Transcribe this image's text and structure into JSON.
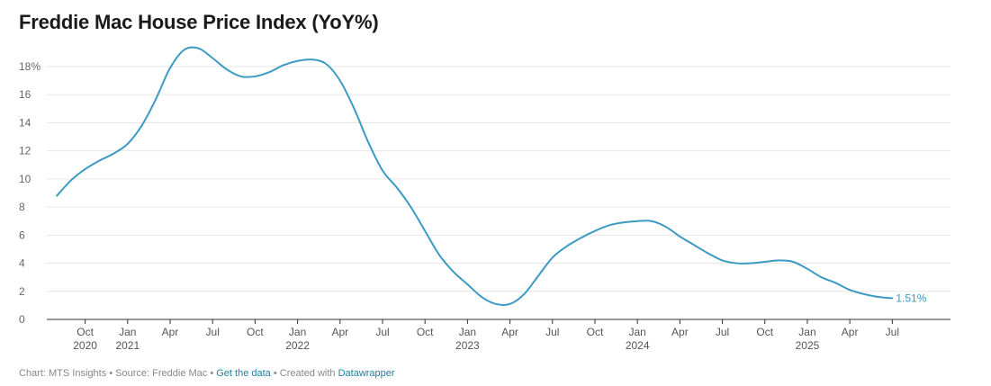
{
  "title": "Freddie Mac House Price Index (YoY%)",
  "footer": {
    "chart_by": "Chart: MTS Insights",
    "sep1": " • ",
    "source": "Source: Freddie Mac",
    "sep2": " • ",
    "get_data": "Get the data",
    "sep3": " • ",
    "created_with": "Created with ",
    "datawrapper": "Datawrapper"
  },
  "colors": {
    "line": "#3c9ac3",
    "grid": "#e6e6e6",
    "axis": "#333333",
    "end_label": "#3c9ac3"
  },
  "chart_data": {
    "type": "line",
    "title": "Freddie Mac House Price Index (YoY%)",
    "xlabel": "",
    "ylabel": "",
    "ylim": [
      0,
      18
    ],
    "y_ticks": [
      {
        "value": 0,
        "label": "0"
      },
      {
        "value": 2,
        "label": "2"
      },
      {
        "value": 4,
        "label": "4"
      },
      {
        "value": 6,
        "label": "6"
      },
      {
        "value": 8,
        "label": "8"
      },
      {
        "value": 10,
        "label": "10"
      },
      {
        "value": 12,
        "label": "12"
      },
      {
        "value": 14,
        "label": "14"
      },
      {
        "value": 16,
        "label": "16"
      },
      {
        "value": 18,
        "label": "18%"
      }
    ],
    "x_ticks": [
      {
        "date": "2020-10",
        "line1": "Oct",
        "line2": "2020"
      },
      {
        "date": "2021-01",
        "line1": "Jan",
        "line2": "2021"
      },
      {
        "date": "2021-04",
        "line1": "Apr",
        "line2": ""
      },
      {
        "date": "2021-07",
        "line1": "Jul",
        "line2": ""
      },
      {
        "date": "2021-10",
        "line1": "Oct",
        "line2": ""
      },
      {
        "date": "2022-01",
        "line1": "Jan",
        "line2": "2022"
      },
      {
        "date": "2022-04",
        "line1": "Apr",
        "line2": ""
      },
      {
        "date": "2022-07",
        "line1": "Jul",
        "line2": ""
      },
      {
        "date": "2022-10",
        "line1": "Oct",
        "line2": ""
      },
      {
        "date": "2023-01",
        "line1": "Jan",
        "line2": "2023"
      },
      {
        "date": "2023-04",
        "line1": "Apr",
        "line2": ""
      },
      {
        "date": "2023-07",
        "line1": "Jul",
        "line2": ""
      },
      {
        "date": "2023-10",
        "line1": "Oct",
        "line2": ""
      },
      {
        "date": "2024-01",
        "line1": "Jan",
        "line2": "2024"
      },
      {
        "date": "2024-04",
        "line1": "Apr",
        "line2": ""
      },
      {
        "date": "2024-07",
        "line1": "Jul",
        "line2": ""
      },
      {
        "date": "2024-10",
        "line1": "Oct",
        "line2": ""
      },
      {
        "date": "2025-01",
        "line1": "Jan",
        "line2": "2025"
      },
      {
        "date": "2025-04",
        "line1": "Apr",
        "line2": ""
      },
      {
        "date": "2025-07",
        "line1": "Jul",
        "line2": ""
      }
    ],
    "grid": true,
    "legend": "none",
    "series": [
      {
        "end_label": "1.51%",
        "points": [
          [
            "2020-08",
            8.8
          ],
          [
            "2020-09",
            9.9
          ],
          [
            "2020-10",
            10.7
          ],
          [
            "2020-11",
            11.3
          ],
          [
            "2020-12",
            11.8
          ],
          [
            "2021-01",
            12.5
          ],
          [
            "2021-02",
            13.8
          ],
          [
            "2021-03",
            15.7
          ],
          [
            "2021-04",
            17.9
          ],
          [
            "2021-05",
            19.2
          ],
          [
            "2021-06",
            19.3
          ],
          [
            "2021-07",
            18.6
          ],
          [
            "2021-08",
            17.8
          ],
          [
            "2021-09",
            17.3
          ],
          [
            "2021-10",
            17.3
          ],
          [
            "2021-11",
            17.6
          ],
          [
            "2021-12",
            18.1
          ],
          [
            "2022-01",
            18.4
          ],
          [
            "2022-02",
            18.5
          ],
          [
            "2022-03",
            18.2
          ],
          [
            "2022-04",
            17.0
          ],
          [
            "2022-05",
            15.0
          ],
          [
            "2022-06",
            12.6
          ],
          [
            "2022-07",
            10.6
          ],
          [
            "2022-08",
            9.4
          ],
          [
            "2022-09",
            8.0
          ],
          [
            "2022-10",
            6.3
          ],
          [
            "2022-11",
            4.6
          ],
          [
            "2022-12",
            3.4
          ],
          [
            "2023-01",
            2.5
          ],
          [
            "2023-02",
            1.6
          ],
          [
            "2023-03",
            1.1
          ],
          [
            "2023-04",
            1.1
          ],
          [
            "2023-05",
            1.8
          ],
          [
            "2023-06",
            3.1
          ],
          [
            "2023-07",
            4.4
          ],
          [
            "2023-08",
            5.2
          ],
          [
            "2023-09",
            5.8
          ],
          [
            "2023-10",
            6.3
          ],
          [
            "2023-11",
            6.7
          ],
          [
            "2023-12",
            6.9
          ],
          [
            "2024-01",
            7.0
          ],
          [
            "2024-02",
            7.0
          ],
          [
            "2024-03",
            6.6
          ],
          [
            "2024-04",
            5.9
          ],
          [
            "2024-05",
            5.3
          ],
          [
            "2024-06",
            4.7
          ],
          [
            "2024-07",
            4.2
          ],
          [
            "2024-08",
            4.0
          ],
          [
            "2024-09",
            4.0
          ],
          [
            "2024-10",
            4.1
          ],
          [
            "2024-11",
            4.2
          ],
          [
            "2024-12",
            4.1
          ],
          [
            "2025-01",
            3.6
          ],
          [
            "2025-02",
            3.0
          ],
          [
            "2025-03",
            2.6
          ],
          [
            "2025-04",
            2.1
          ],
          [
            "2025-05",
            1.8
          ],
          [
            "2025-06",
            1.6
          ],
          [
            "2025-07",
            1.51
          ]
        ]
      }
    ]
  }
}
